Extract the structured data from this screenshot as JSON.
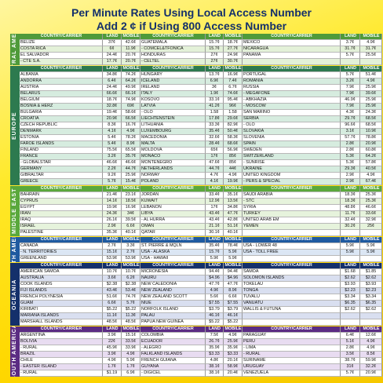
{
  "header": {
    "title": "Per Minute Rates Using Local Access Number",
    "subtitle": "Add 2 ¢ if Using 800 Access Number"
  },
  "sections": [
    {
      "label": "CENTRAL AMERICA",
      "color": "#4f9a3a",
      "tint": "#e3f1d8",
      "header": [
        "COUNTRY/CARRIER",
        "LAND",
        "MOBILE"
      ],
      "rows": [
        [
          "BELIZE",
          "37¢",
          "42.6¢",
          "GUATEMALA",
          "15.7¢",
          "18.7¢",
          "MEXICO",
          "3.7¢",
          "4.9¢"
        ],
        [
          "COSTA RICA",
          "6¢",
          "11.9¢",
          "- COMCEL&TFONICA",
          "15.7¢",
          "27.7¢",
          "NICARAGUA",
          "31.7¢",
          "31.7¢"
        ],
        [
          "EL SALVADOR",
          "24.4¢",
          "20.7¢",
          "HONDURAS",
          "27¢",
          "24.9¢",
          "PANAMA",
          "5.7¢",
          "25.5¢"
        ],
        [
          "- CTE S.A.",
          "17.7¢",
          "20.7¢",
          "- CELTEL",
          "27¢",
          "30.7¢"
        ]
      ]
    },
    {
      "label": "EUROPE",
      "color": "#2d7a4f",
      "tint": "#d6ecdf",
      "header": [
        "COUNTRY/CARRIER",
        "LAND",
        "MOBILE"
      ],
      "rows": [
        [
          "ALBANIA",
          "34.8¢",
          "74.2¢",
          "HUNGARY",
          "13.7¢",
          "16.9¢",
          "PORTUGAL",
          "5.7¢",
          "51.4¢"
        ],
        [
          "ANDORRA",
          "6.4¢",
          "64.2¢",
          "ICELAND",
          "6.9¢",
          "7.4¢",
          "ROMANIA",
          "3.2¢",
          "4.9¢"
        ],
        [
          "AUSTRIA",
          "24.4¢",
          "49.9¢",
          "IRELAND",
          "3¢",
          "6.7¢",
          "RUSSIA",
          "7.9¢",
          "25.9¢"
        ],
        [
          "BELARUS",
          "66.6¢",
          "66.1¢",
          "ITALY",
          "1.9¢",
          "74.6¢",
          "- MEGAFONE",
          "7.9¢",
          "39.6¢"
        ],
        [
          "BELGIUM",
          "18.7¢",
          "74.9¢",
          "KOSOVO",
          "33.1¢",
          "95.4¢",
          "- ABKHAZIA",
          "46.9¢",
          "25.9¢"
        ],
        [
          "BOSNIA & HERZ",
          "32.8¢",
          "69¢",
          "LATVIA",
          "41.2¢",
          "96¢",
          "- MOSCOW",
          "7.9¢",
          "25.9¢"
        ],
        [
          "BULGARIA",
          "19.4¢",
          "58.6¢",
          "- OLO",
          "1.58",
          "1.58",
          "SAN MARINO",
          "4.3¢",
          "24.3¢"
        ],
        [
          "CROATIA",
          "20.9¢",
          "66.5¢",
          "LIECHTENSTEIN",
          "17.8¢",
          "29.6¢",
          "SERBIA",
          "29.7¢",
          "68.5¢"
        ],
        [
          "CZECH REPUBLIC",
          "8.3¢",
          "16.7¢",
          "LITHUANIA",
          "33.3¢",
          "82.9¢",
          "- OLO",
          "96.6¢",
          "68.5¢"
        ],
        [
          "DENMARK",
          "4.1¢",
          "4.9¢",
          "LUXEMBOURG",
          "35.4¢",
          "50.4¢",
          "SLOVAKIA",
          "3.1¢",
          "10.9¢"
        ],
        [
          "ESTONIA",
          "5.4¢",
          "78.2¢",
          "MACEDONIA",
          "32.6¢",
          "58.3¢",
          "SLOVENIA",
          "57.7¢",
          "78.8¢"
        ],
        [
          "FAROE ISLANDS",
          "5.4¢",
          "8.9¢",
          "MALTA",
          "28.4¢",
          "68.6¢",
          "SPAIN",
          "2.8¢",
          "20.9¢"
        ],
        [
          "FINLAND",
          "75.5¢",
          "65.5¢",
          "MOLDOVA",
          "65¢",
          "56.9¢",
          "SWEDEN",
          "2.8¢",
          "60.8¢"
        ],
        [
          "FRANCE",
          "3.2¢",
          "35.7¢",
          "MONACO",
          "17¢",
          "85¢",
          "SWITZERLAND",
          "5.3¢",
          "64.2¢"
        ],
        [
          "- GLOBALSTAR",
          "46.6¢",
          "46.6¢",
          "MONTENEGRO",
          "47.6¢",
          "85¢",
          "- SUNRISE",
          "5.3¢",
          "57.8¢"
        ],
        [
          "GERMANY",
          "2.2¢",
          "44.7¢",
          "NETHERLANDS",
          "44.7¢",
          "44¢",
          "UKRAINE",
          "29.3¢",
          "40.5¢"
        ],
        [
          "GIBRALTAR",
          "9.2¢",
          "25.9¢",
          "NORWAY",
          "4.7¢",
          "4.9¢",
          "UNITED KINGDOM",
          "2.9¢",
          "4.9¢"
        ],
        [
          "GREECE",
          "5.7¢",
          "15.4¢",
          "POLAND",
          "4.1¢",
          "19.9¢",
          "- PERS & SPECIAL",
          "2.9¢",
          "67.4¢"
        ]
      ]
    },
    {
      "label": "MIDDLE EAST",
      "color": "#5aa83c",
      "tint": "#e6f3dc",
      "header": [
        "COUNTRY/CARRIER",
        "LAND",
        "MOBILE"
      ],
      "rows": [
        [
          "BAHRAIN",
          "21.4¢",
          "23.1¢",
          "JORDAN",
          "33.4¢",
          "35.1¢",
          "SAUDI ARABIA",
          "18.3¢",
          "25.3¢"
        ],
        [
          "CYPRUS",
          "14.1¢",
          "18.5¢",
          "KUWAIT",
          "12.9¢",
          "13.5¢",
          "- STC",
          "18.3¢",
          "25.3¢"
        ],
        [
          "EGYPT",
          "19.9¢",
          "16.9¢",
          "LEBANON",
          "17¢",
          "34.8¢",
          "SYRIA",
          "48.8¢",
          "46.6¢"
        ],
        [
          "IRAN",
          "24.3¢",
          "34¢",
          "LIBYA",
          "43.4¢",
          "47.7¢",
          "TURKEY",
          "11.7¢",
          "33.6¢"
        ],
        [
          "IRAQ",
          "26.1¢",
          "39.5¢",
          "- AL HURRA",
          "43.4¢",
          "42.8¢",
          "UNITED ARAB EM",
          "32.4¢",
          "32.9¢"
        ],
        [
          "ISRAEL",
          "2.9¢",
          "6.6¢",
          "OMAN",
          "21.1¢",
          "51.1¢",
          "YEMEN",
          "30.2¢",
          "25¢"
        ],
        [
          "PALESTINE",
          "35.3¢",
          "40.1¢",
          "QATAR",
          "30.1¢",
          "40.1¢"
        ]
      ]
    },
    {
      "label": "NORTH AMERICA",
      "color": "#1f5aa0",
      "tint": "#dbe6f4",
      "header": [
        "COUNTRY/CARRIER",
        "LAND",
        "MOBILE"
      ],
      "rows": [
        [
          "CANADA",
          "2.7¢",
          "3.3¢",
          "ST. PIERRE & MQLN",
          "35.4¢",
          "78.4¢",
          "USA - LOWER 48",
          "5.9¢",
          "5.9¢"
        ],
        [
          "- N. TERRITORIES",
          "15.1¢",
          "2.7¢",
          "USA - ALASKA",
          "15.7¢",
          "5.9¢",
          "USA - TOLL FREE",
          "5.9¢",
          "5.9¢"
        ],
        [
          "GREENLAND",
          "53.9¢",
          "53.9¢",
          "USA - HAWAII",
          "5.9¢",
          "5.9¢"
        ]
      ]
    },
    {
      "label": "OCEANIA",
      "color": "#14306b",
      "tint": "#d9dff0",
      "header": [
        "COUNTRY/CARRIER",
        "LAND",
        "MOBILE"
      ],
      "rows": [
        [
          "AMERICAN SAMOA",
          "10.7¢",
          "10.7¢",
          "MICRONESIA",
          "94.4¢",
          "94.4¢",
          "SAMOA",
          "$1.68",
          "$1.85"
        ],
        [
          "AUSTRALIA",
          "3.6¢",
          "6.2¢",
          "NAURU",
          "$4.96",
          "$4.96",
          "SOLOMON ISLANDS",
          "$2.62",
          "$2.62"
        ],
        [
          "COOK ISLANDS",
          "$2.38",
          "$2.38",
          "NEW CALEDONIA",
          "47.7¢",
          "47.7¢",
          "TOKELAU",
          "$3.93",
          "$3.93"
        ],
        [
          "FIJI ISLANDS",
          "43.4¢",
          "53.4¢",
          "NEW ZEALAND",
          "4.9¢",
          "8.9¢",
          "TONGA",
          "$2.23",
          "$2.23"
        ],
        [
          "FRENCH POLYNESIA",
          "51.6¢",
          "74.7¢",
          "NEW ZEALAND SCOTT",
          "5.6¢",
          "6.6¢",
          "TUVALU",
          "$3.34",
          "$3.34"
        ],
        [
          "GUAM",
          "6.6¢",
          "5.7¢",
          "NIUE",
          "$7.55",
          "$7.55",
          "VANUATU",
          "$6.35",
          "$6.35"
        ],
        [
          "KIRIBATI",
          "$5.22",
          "$5.22",
          "NORFOLK ISLAND",
          "$3.79",
          "$3.79",
          "WALLIS & FUTUNA",
          "$2.62",
          "$2.62"
        ],
        [
          "MARIANA ISLANDS",
          "11.1¢",
          "11.3¢",
          "PALAU",
          "46.1¢",
          "46.1¢"
        ],
        [
          "MARSHALL ISLANDS",
          "48.5¢",
          "48.5¢",
          "PAPUA NEW GUINEA",
          "$5.22",
          "$5.22"
        ]
      ]
    },
    {
      "label": "SOUTH AMERICA",
      "color": "#5b2c83",
      "tint": "#e8dcf1",
      "header": [
        "COUNTRY/CARRIER",
        "LAND",
        "MOBILE"
      ],
      "rows": [
        [
          "ARGENTINA",
          "3.9¢",
          "15.1¢",
          "COLOMBIA",
          "7.5¢",
          "4.9¢",
          "PARAGUAY",
          "6.4¢",
          "12.6¢"
        ],
        [
          "BOLIVIA",
          "22¢",
          "33.5¢",
          "ECUADOR",
          "26.7¢",
          "25.9¢",
          "PERU",
          "5.1¢",
          "4.9¢"
        ],
        [
          "- RURAL",
          "45.9¢",
          "33.9¢",
          "- ALEGRO",
          "35.9¢",
          "35.9¢",
          "- LIMA",
          "2.8¢",
          "4.9¢"
        ],
        [
          "BRAZIL",
          "3.9¢",
          "4.9¢",
          "FALKLAND ISLANDS",
          "$3.33",
          "$3.33",
          "- RURAL",
          "3.5¢",
          "8.5¢"
        ],
        [
          "CHILE",
          "4.9¢",
          "5.9¢",
          "FRENCH GUIANA",
          "4.8¢",
          "20.1¢",
          "SURINAME",
          "38.7¢",
          "59.9¢"
        ],
        [
          "- EASTER ISLAND",
          "1.7¢",
          "1.7¢",
          "GUYANA",
          "38.1¢",
          "58.9¢",
          "URUGUAY",
          "31¢",
          "32.2¢"
        ],
        [
          "- RURAL",
          "$1.19",
          "6.9¢",
          "- DIGICEL",
          "38.1¢",
          "20.4¢",
          "VENEZUELA",
          "5.7¢",
          "20.9¢"
        ]
      ]
    }
  ]
}
